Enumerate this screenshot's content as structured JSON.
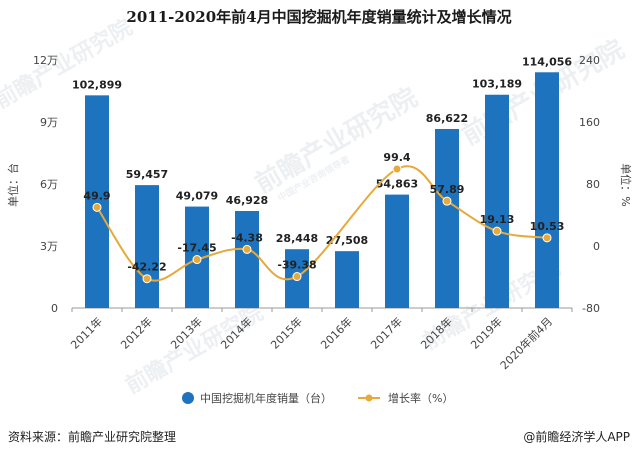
{
  "colors": {
    "bar": "#1e73be",
    "line": "#e6a93a",
    "axis": "#999999",
    "watermark": "#dfe5ea"
  },
  "footer": {
    "source": "资料来源：前瞻产业研究院整理",
    "brand": "@前瞻经济学人APP"
  },
  "watermark": {
    "text": "前瞻产业研究院",
    "subtext": "中国产业咨询领导者"
  },
  "chart_data": {
    "type": "bar",
    "title": "2011-2020年前4月中国挖掘机年度销量统计及增长情况",
    "categories": [
      "2011年",
      "2012年",
      "2013年",
      "2014年",
      "2015年",
      "2016年",
      "2017年",
      "2018年",
      "2019年",
      "2020年前4月"
    ],
    "series": [
      {
        "name": "中国挖掘机年度销量（台）",
        "type": "bar",
        "axis": "left",
        "values": [
          102899,
          59457,
          49079,
          46928,
          28448,
          27508,
          54863,
          86622,
          103189,
          114056
        ],
        "labels": [
          "102,899",
          "59,457",
          "49,079",
          "46,928",
          "28,448",
          "27,508",
          "54,863",
          "86,622",
          "103,189",
          "114,056"
        ]
      },
      {
        "name": "增长率（%）",
        "type": "line",
        "axis": "right",
        "values": [
          49.9,
          -42.22,
          -17.45,
          -4.38,
          -39.38,
          null,
          99.4,
          57.89,
          19.13,
          10.53
        ],
        "labels": [
          "49.9",
          "-42.22",
          "-17.45",
          "-4.38",
          "-39.38",
          "",
          "99.4",
          "57.89",
          "19.13",
          "10.53"
        ]
      }
    ],
    "ylabel": "单位：台",
    "y2label": "单位：%",
    "ylim": [
      0,
      120000
    ],
    "y2lim": [
      -80,
      240
    ],
    "yticks": [
      0,
      30000,
      60000,
      90000,
      120000
    ],
    "ytick_labels": [
      "0",
      "3万",
      "6万",
      "9万",
      "12万"
    ],
    "y2ticks": [
      -80,
      0,
      80,
      160,
      240
    ],
    "y2tick_labels": [
      "-80",
      "0",
      "80",
      "160",
      "240"
    ],
    "grid": false,
    "legend_position": "bottom"
  }
}
